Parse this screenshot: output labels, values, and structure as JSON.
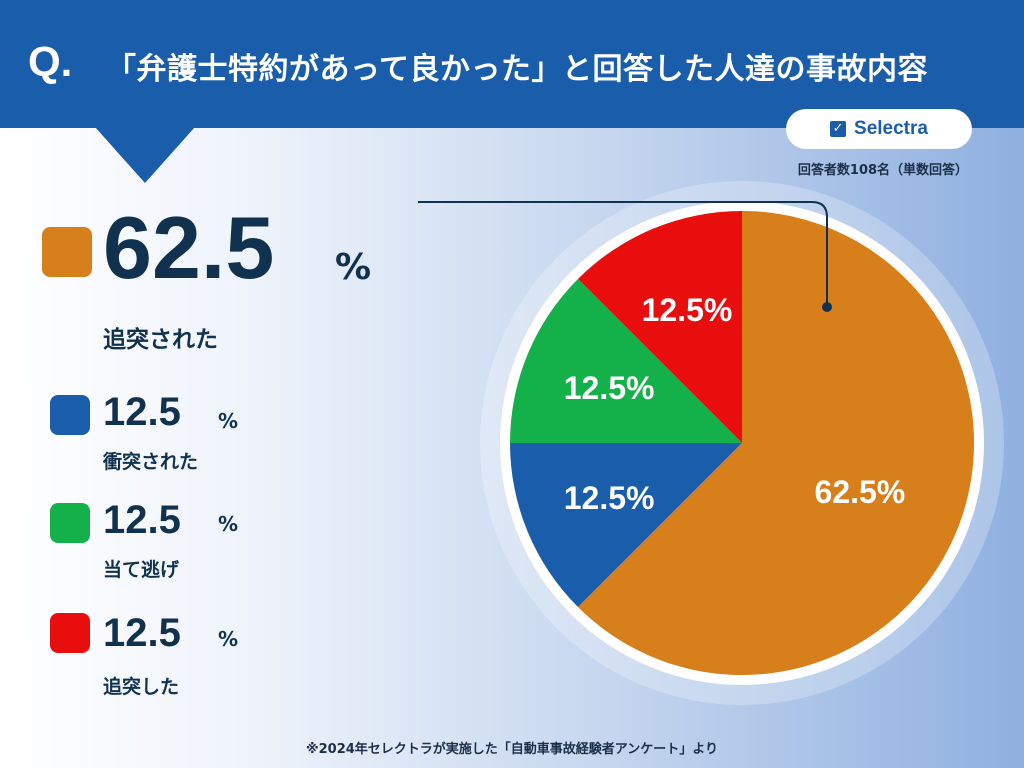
{
  "header": {
    "q_mark": "Q.",
    "title": "「弁護士特約があって良かった」と回答した人達の事故内容"
  },
  "brand": {
    "check_icon": "check-box-icon",
    "name": "Selectra"
  },
  "note": "回答者数108名（単数回答）",
  "legend": {
    "main": {
      "value": "62.5",
      "unit": "%",
      "label": "追突された"
    },
    "items": [
      {
        "value": "12.5",
        "unit": "%",
        "label": "衝突された"
      },
      {
        "value": "12.5",
        "unit": "%",
        "label": "当て逃げ"
      },
      {
        "value": "12.5",
        "unit": "%",
        "label": "追突した"
      }
    ]
  },
  "footer": "※2024年セレクトラが実施した「自動車事故経験者アンケート」より",
  "colors": {
    "header": "#1a5eab",
    "orange": "#d67f1b",
    "blue": "#1a5eab",
    "green": "#14b04a",
    "red": "#e80e0e",
    "text": "#10324f"
  },
  "chart_data": {
    "type": "pie",
    "title": "「弁護士特約があって良かった」と回答した人達の事故内容",
    "start_angle": "12 o'clock, clockwise",
    "slices": [
      {
        "label": "追突された",
        "value": 62.5,
        "display": "62.5%",
        "color": "#d67f1b"
      },
      {
        "label": "衝突された",
        "value": 12.5,
        "display": "12.5%",
        "color": "#1a5eab"
      },
      {
        "label": "当て逃げ",
        "value": 12.5,
        "display": "12.5%",
        "color": "#14b04a"
      },
      {
        "label": "追突した",
        "value": 12.5,
        "display": "12.5%",
        "color": "#e80e0e"
      }
    ]
  }
}
